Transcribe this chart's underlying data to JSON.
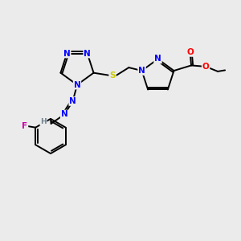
{
  "bg_color": "#EBEBEB",
  "atom_colors": {
    "N": "#0000FF",
    "O": "#FF0000",
    "S": "#CCCC00",
    "F": "#CC00AA",
    "C": "#000000",
    "H": "#708090"
  },
  "bond_color": "#000000",
  "figsize": [
    3.0,
    3.0
  ],
  "dpi": 100,
  "lw": 1.4,
  "fontsize": 7.5
}
